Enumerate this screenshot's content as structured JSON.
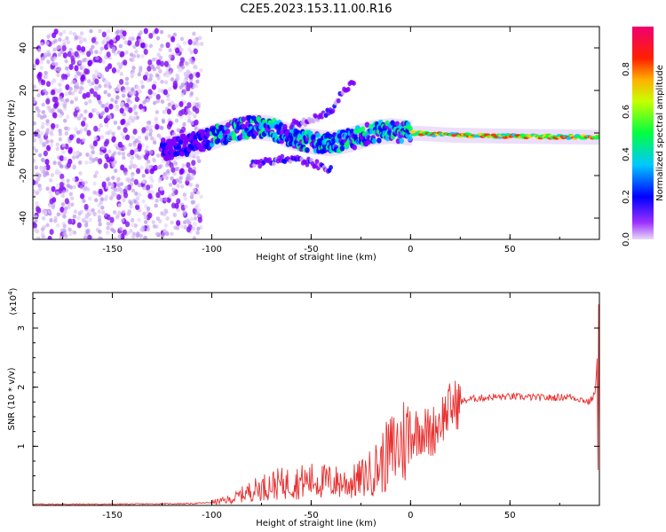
{
  "title": "C2E5.2023.153.11.00.R16",
  "chart_data": [
    {
      "type": "heatmap",
      "xlabel": "Height of straight line (km)",
      "ylabel": "Frequency (Hz)",
      "xlim": [
        -190,
        95
      ],
      "ylim": [
        -50,
        50
      ],
      "xticks": [
        -150,
        -100,
        -50,
        0,
        50
      ],
      "yticks": [
        -40,
        -20,
        0,
        20,
        40
      ],
      "colorbar": {
        "label": "Normalized spectral amplitude",
        "range": [
          0,
          1
        ],
        "ticks": [
          "0.0",
          "0.2",
          "0.4",
          "0.6",
          "0.8"
        ],
        "colors": [
          "#e8d8f8",
          "#7f00ff",
          "#0000ff",
          "#00c0ff",
          "#00ff40",
          "#ffff00",
          "#ff8000",
          "#ff0000",
          "#f00060"
        ]
      },
      "features": {
        "noise_region_x": [
          -190,
          -105
        ],
        "noise_spread_hz": [
          -50,
          48
        ],
        "echo_trace": [
          {
            "x": -125,
            "y": -8
          },
          {
            "x": -110,
            "y": -5
          },
          {
            "x": -100,
            "y": -2
          },
          {
            "x": -90,
            "y": 1
          },
          {
            "x": -80,
            "y": 3
          },
          {
            "x": -70,
            "y": 2
          },
          {
            "x": -60,
            "y": -2
          },
          {
            "x": -50,
            "y": -4
          },
          {
            "x": -40,
            "y": -5
          },
          {
            "x": -30,
            "y": -3
          },
          {
            "x": -20,
            "y": 0
          },
          {
            "x": -10,
            "y": 1
          },
          {
            "x": 0,
            "y": 0
          },
          {
            "x": 20,
            "y": -1
          },
          {
            "x": 50,
            "y": -1.5
          },
          {
            "x": 95,
            "y": -2
          }
        ],
        "upper_branch": [
          {
            "x": -60,
            "y": 4
          },
          {
            "x": -50,
            "y": 6
          },
          {
            "x": -40,
            "y": 10
          },
          {
            "x": -35,
            "y": 18
          },
          {
            "x": -28,
            "y": 24
          }
        ],
        "lower_branch": [
          {
            "x": -80,
            "y": -15
          },
          {
            "x": -70,
            "y": -13
          },
          {
            "x": -60,
            "y": -12
          },
          {
            "x": -50,
            "y": -14
          },
          {
            "x": -40,
            "y": -17
          }
        ]
      }
    },
    {
      "type": "line",
      "xlabel": "Height of straight line (km)",
      "ylabel": "SNR (10 * v/v)",
      "scale_note": "(x10",
      "scale_exp": "4",
      "scale_close": ")",
      "xlim": [
        -190,
        95
      ],
      "ylim": [
        0,
        3.6
      ],
      "xticks": [
        -150,
        -100,
        -50,
        0,
        50
      ],
      "yticks": [
        1,
        2,
        3
      ],
      "color": "#e83030",
      "series": [
        {
          "x": [
            -190,
            -150,
            -110,
            -100,
            -90,
            -85,
            -80,
            -75,
            -70,
            -60,
            -50,
            -40,
            -30,
            -25,
            -20,
            -15,
            -10,
            -5,
            0,
            5,
            10,
            15,
            20,
            25,
            30,
            40,
            50,
            60,
            70,
            80,
            85,
            90,
            93,
            95
          ],
          "values": [
            0.02,
            0.02,
            0.03,
            0.05,
            0.1,
            0.18,
            0.25,
            0.3,
            0.35,
            0.38,
            0.42,
            0.4,
            0.38,
            0.45,
            0.55,
            0.7,
            0.9,
            1.05,
            1.2,
            1.3,
            1.2,
            1.45,
            1.65,
            1.75,
            1.8,
            1.83,
            1.84,
            1.83,
            1.82,
            1.84,
            1.8,
            1.75,
            1.9,
            3.4
          ]
        }
      ]
    }
  ]
}
